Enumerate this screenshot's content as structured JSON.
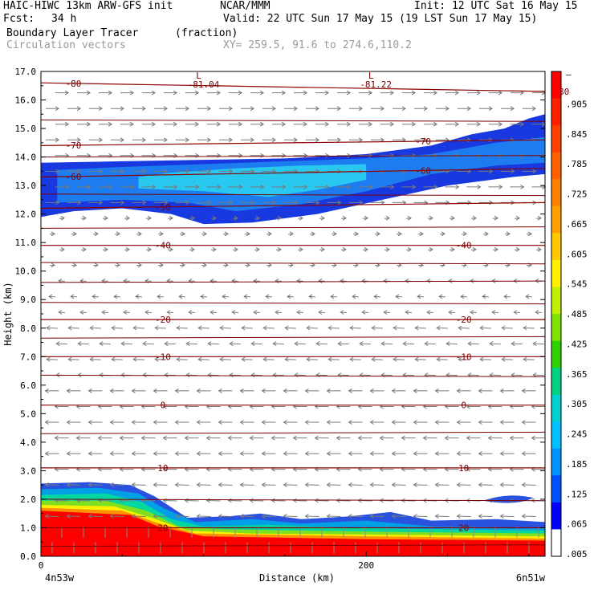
{
  "header": {
    "model": "HAIC-HIWC 13km ARW-GFS init",
    "org": "NCAR/MMM",
    "init": "Init: 12 UTC Sat 16 May 15",
    "fcst_label": "Fcst:",
    "fcst_value": "34 h",
    "valid": "Valid: 22 UTC Sun 17 May 15 (19 LST Sun 17 May 15)",
    "field1": "Boundary Layer Tracer",
    "field1_units": "(fraction)",
    "field2": "Circulation vectors",
    "xy": "XY= 259.5, 91.6 to 274.6,110.2"
  },
  "chart_data": {
    "type": "heatmap",
    "ylabel": "Height (km)",
    "xlabel": "Distance (km)",
    "xlim": [
      0,
      310
    ],
    "ylim": [
      0,
      17
    ],
    "y_ticks": [
      "0.0",
      "1.0",
      "2.0",
      "3.0",
      "4.0",
      "5.0",
      "6.0",
      "7.0",
      "8.0",
      "9.0",
      "10.0",
      "11.0",
      "12.0",
      "13.0",
      "14.0",
      "15.0",
      "16.0",
      "17.0"
    ],
    "x_ticks": [
      "0",
      "200"
    ],
    "x_endpoints": {
      "left": "4n53w",
      "right": "6n51w"
    },
    "colorbar": {
      "labels": [
        "–",
        ".905",
        ".845",
        ".785",
        ".725",
        ".665",
        ".605",
        ".545",
        ".485",
        ".425",
        ".365",
        ".305",
        ".245",
        ".185",
        ".125",
        ".065",
        ".005"
      ],
      "colors": [
        "#ff0000",
        "#ff2000",
        "#ff4000",
        "#ff6000",
        "#ff8000",
        "#ffa000",
        "#ffc800",
        "#fff000",
        "#c0f000",
        "#80e000",
        "#30d000",
        "#00d080",
        "#00d0d0",
        "#00c0ff",
        "#0090ff",
        "#0050ff",
        "#0000ff",
        "#ffffff"
      ]
    },
    "isotherms": [
      {
        "level": -80,
        "label": "-80"
      },
      {
        "level": -70,
        "label": "-70"
      },
      {
        "level": -60,
        "label": "-60"
      },
      {
        "level": -50,
        "label": "-50"
      },
      {
        "level": -40,
        "label": "-40"
      },
      {
        "level": -20,
        "label": "-20"
      },
      {
        "level": -10,
        "label": "-10"
      },
      {
        "level": 0,
        "label": "0"
      },
      {
        "level": 10,
        "label": "10"
      },
      {
        "level": 20,
        "label": "20"
      }
    ],
    "lows": [
      {
        "label": "L",
        "value": "-81.04"
      },
      {
        "label": "L",
        "value": "-81.22"
      }
    ]
  }
}
